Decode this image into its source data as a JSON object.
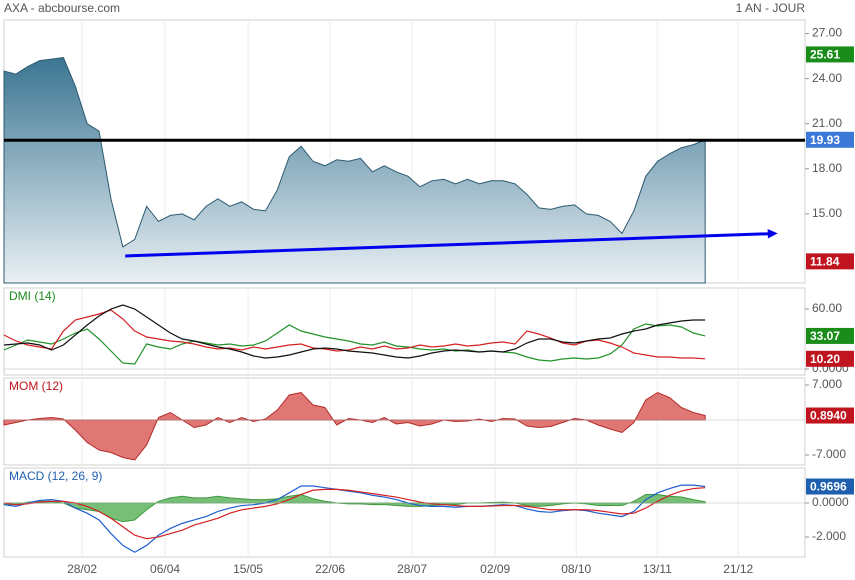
{
  "header": {
    "title": "AXA - abcbourse.com",
    "period": "1 AN - JOUR"
  },
  "x_axis": {
    "xlim": [
      0,
      67.4
    ],
    "grid": true,
    "xticks": [
      {
        "value": 6.57,
        "label": "28/02"
      },
      {
        "value": 13.55,
        "label": "06/04"
      },
      {
        "value": 20.54,
        "label": "15/05"
      },
      {
        "value": 27.44,
        "label": "22/06"
      },
      {
        "value": 34.34,
        "label": "28/07"
      },
      {
        "value": 41.33,
        "label": "02/09"
      },
      {
        "value": 48.15,
        "label": "08/10"
      },
      {
        "value": 54.97,
        "label": "13/11"
      },
      {
        "value": 61.78,
        "label": "21/12"
      }
    ]
  },
  "chart_data": [
    {
      "type": "area",
      "ylim": [
        10.4,
        27.9
      ],
      "yticks": [
        {
          "value": 15,
          "label": "15.00"
        },
        {
          "value": 18,
          "label": "18.00"
        },
        {
          "value": 21,
          "label": "21.00"
        },
        {
          "value": 24,
          "label": "24.00"
        },
        {
          "value": 27,
          "label": "27.00"
        }
      ],
      "series": [
        {
          "color": "#2c5a70",
          "values": [
            24.5,
            24.3,
            24.8,
            25.2,
            25.3,
            25.4,
            23.5,
            21.0,
            20.5,
            16.0,
            12.8,
            13.3,
            15.5,
            14.5,
            14.9,
            15.0,
            14.6,
            15.5,
            16.0,
            15.5,
            15.8,
            15.3,
            15.2,
            16.6,
            18.8,
            19.5,
            18.5,
            18.2,
            18.6,
            18.5,
            18.7,
            17.8,
            18.2,
            17.8,
            17.5,
            16.8,
            17.2,
            17.3,
            17.0,
            17.3,
            17.0,
            17.2,
            17.2,
            17.0,
            16.3,
            15.4,
            15.3,
            15.5,
            15.6,
            15.0,
            14.9,
            14.5,
            13.7,
            15.2,
            17.5,
            18.5,
            19.0,
            19.4,
            19.6,
            19.93
          ]
        }
      ],
      "hline": {
        "value": 19.9,
        "color": "#000000"
      },
      "trendline": {
        "x": [
          10.2,
          65.1
        ],
        "y": [
          12.2,
          13.7
        ],
        "color": "#0000ee"
      },
      "badges": [
        {
          "value": 25.61,
          "color": "#1a8c1a"
        },
        {
          "value": 19.93,
          "color": "#3c78d8"
        },
        {
          "value": 11.84,
          "color": "#c0141e"
        }
      ]
    },
    {
      "type": "line",
      "title": "DMI (14)",
      "title_color": "#1a8c1a",
      "ylim": [
        -6,
        81
      ],
      "yticks": [
        {
          "value": 0,
          "label": "0.0000"
        },
        {
          "value": 60,
          "label": "60.00"
        }
      ],
      "series": [
        {
          "color": "#22922a",
          "values": [
            19,
            24,
            29,
            27,
            25,
            30,
            36,
            40,
            30,
            18,
            6,
            5,
            25,
            22,
            20,
            25,
            28,
            26,
            24,
            25,
            23,
            24,
            28,
            36,
            44,
            38,
            35,
            32,
            30,
            28,
            25,
            24,
            27,
            23,
            22,
            20,
            19,
            20,
            18,
            19,
            17,
            18,
            17,
            16,
            12,
            9,
            8,
            10,
            11,
            10,
            11,
            15,
            24,
            40,
            45,
            43,
            44,
            42,
            36,
            33.07
          ]
        },
        {
          "color": "#d42020",
          "values": [
            34,
            28,
            24,
            22,
            20,
            38,
            49,
            52,
            55,
            59,
            50,
            38,
            32,
            30,
            28,
            27,
            25,
            22,
            20,
            21,
            19,
            22,
            20,
            22,
            24,
            25,
            21,
            20,
            18,
            19,
            22,
            20,
            23,
            20,
            21,
            24,
            22,
            23,
            25,
            23,
            24,
            26,
            27,
            25,
            38,
            35,
            31,
            26,
            24,
            28,
            29,
            26,
            22,
            16,
            14,
            12,
            12,
            11,
            11,
            10.2
          ]
        },
        {
          "color": "#111111",
          "values": [
            24,
            25,
            26,
            24,
            19,
            24,
            34,
            44,
            53,
            60,
            64,
            60,
            52,
            44,
            36,
            30,
            28,
            25,
            22,
            20,
            17,
            13,
            11,
            12,
            14,
            17,
            20,
            21,
            20,
            18,
            17,
            16,
            14,
            12,
            11,
            13,
            16,
            18,
            19,
            18,
            17,
            18,
            17,
            20,
            26,
            30,
            30,
            27,
            26,
            28,
            30,
            31,
            35,
            38,
            40,
            44,
            46,
            48,
            49,
            49
          ]
        }
      ],
      "badges": [
        {
          "value": 33.07,
          "color": "#1a8c1a"
        },
        {
          "value": 10.2,
          "label": "10.20",
          "color": "#c0141e"
        }
      ]
    },
    {
      "type": "area",
      "title": "MOM (12)",
      "title_color": "#c0141e",
      "ylim": [
        -9,
        8.4
      ],
      "yticks": [
        {
          "value": -7,
          "label": "-7.000"
        },
        {
          "value": 7,
          "label": "7.000"
        }
      ],
      "series": [
        {
          "color": "#b52a2a",
          "fill": "#d9605c",
          "values": [
            -1,
            -0.5,
            0,
            0.3,
            0.5,
            0.2,
            -2,
            -4.5,
            -6,
            -6.5,
            -7.5,
            -8,
            -5,
            0.5,
            1.5,
            0,
            -1.5,
            -1,
            0.5,
            -0.5,
            0.5,
            -0.3,
            0.2,
            2,
            5,
            5.5,
            3,
            2.5,
            -1,
            0.3,
            0,
            -0.5,
            0.5,
            -0.8,
            -0.5,
            -1.2,
            -0.8,
            0,
            -0.3,
            -0.2,
            0.2,
            -0.3,
            0.3,
            0.2,
            -1.2,
            -1.5,
            -1.3,
            -0.5,
            0.3,
            0,
            -1,
            -1.8,
            -2.5,
            -0.5,
            4,
            5.5,
            4.5,
            2.5,
            1.5,
            0.894
          ]
        }
      ],
      "badges": [
        {
          "value": 0.894,
          "label": "0.8940",
          "color": "#c0141e"
        }
      ]
    },
    {
      "type": "line",
      "title": "MACD (12, 26, 9)",
      "title_color": "#1f5fb0",
      "ylim": [
        -3.18,
        2.06
      ],
      "yticks": [
        {
          "value": -2,
          "label": "-2.000"
        },
        {
          "value": 0,
          "label": "0.0000"
        }
      ],
      "series": [
        {
          "type": "area",
          "color": "#3f9a3f",
          "fill": "#5fb35f",
          "values": [
            -0.1,
            -0.1,
            0.05,
            0.1,
            0.1,
            0,
            -0.3,
            -0.4,
            -0.5,
            -0.9,
            -1.1,
            -1.0,
            -0.4,
            0.1,
            0.3,
            0.4,
            0.3,
            0.3,
            0.4,
            0.3,
            0.25,
            0.2,
            0.2,
            0.25,
            0.4,
            0.5,
            0.25,
            0.1,
            0,
            -0.05,
            -0.05,
            -0.1,
            -0.1,
            -0.15,
            -0.2,
            -0.2,
            -0.15,
            -0.1,
            -0.1,
            0,
            0,
            0.03,
            0.05,
            0,
            -0.15,
            -0.2,
            -0.15,
            -0.05,
            0,
            -0.05,
            -0.15,
            -0.15,
            -0.15,
            0.1,
            0.5,
            0.5,
            0.4,
            0.35,
            0.2,
            0.07
          ]
        },
        {
          "color": "#1f5fd0",
          "values": [
            -0.1,
            -0.2,
            0,
            0.15,
            0.2,
            0.1,
            -0.3,
            -0.6,
            -1.0,
            -1.8,
            -2.5,
            -2.9,
            -2.5,
            -1.9,
            -1.5,
            -1.2,
            -1.0,
            -0.8,
            -0.5,
            -0.3,
            -0.15,
            -0.1,
            0,
            0.2,
            0.6,
            1.0,
            1.0,
            0.9,
            0.8,
            0.7,
            0.6,
            0.45,
            0.35,
            0.2,
            0.0,
            -0.15,
            -0.2,
            -0.2,
            -0.25,
            -0.2,
            -0.2,
            -0.15,
            -0.1,
            -0.15,
            -0.35,
            -0.5,
            -0.55,
            -0.45,
            -0.4,
            -0.45,
            -0.6,
            -0.7,
            -0.8,
            -0.5,
            0.2,
            0.6,
            0.85,
            1.05,
            1.05,
            0.97
          ]
        },
        {
          "color": "#d42020",
          "values": [
            0,
            -0.1,
            -0.05,
            0.05,
            0.1,
            0.1,
            0,
            -0.2,
            -0.5,
            -0.9,
            -1.4,
            -1.9,
            -2.1,
            -2.0,
            -1.8,
            -1.6,
            -1.3,
            -1.1,
            -0.9,
            -0.6,
            -0.4,
            -0.3,
            -0.2,
            -0.05,
            0.2,
            0.5,
            0.75,
            0.8,
            0.8,
            0.75,
            0.65,
            0.55,
            0.45,
            0.35,
            0.2,
            0.05,
            -0.05,
            -0.1,
            -0.15,
            -0.2,
            -0.2,
            -0.18,
            -0.15,
            -0.15,
            -0.2,
            -0.3,
            -0.4,
            -0.4,
            -0.4,
            -0.4,
            -0.45,
            -0.55,
            -0.65,
            -0.6,
            -0.3,
            0.1,
            0.45,
            0.7,
            0.85,
            0.9
          ]
        }
      ],
      "badges": [
        {
          "value": 0.9696,
          "color": "#1f5fb0"
        }
      ]
    }
  ]
}
